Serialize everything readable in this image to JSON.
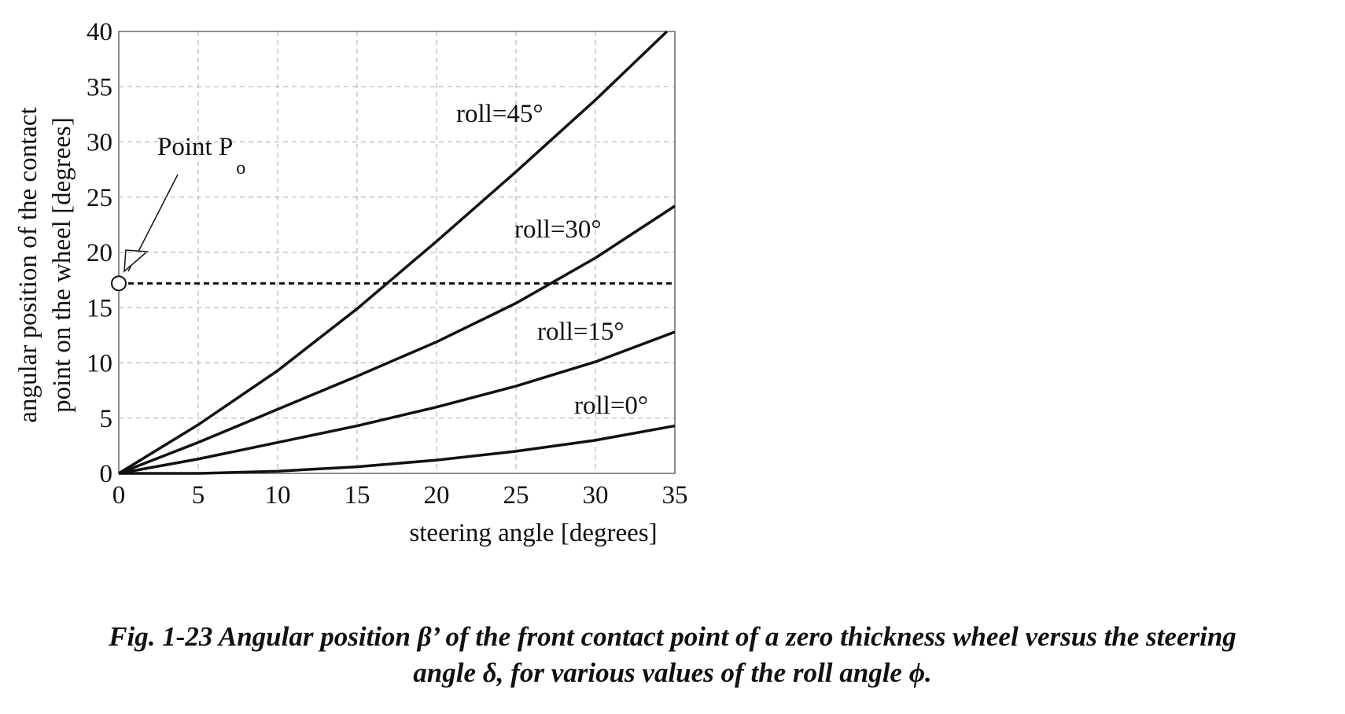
{
  "chart_data": {
    "type": "line",
    "xlabel": "steering angle [degrees]",
    "ylabel": [
      "angular position of the contact",
      "point on the wheel [degrees]"
    ],
    "x": [
      0,
      5,
      10,
      15,
      20,
      25,
      30,
      35
    ],
    "series": [
      {
        "name": "roll=45°",
        "color": "#111111",
        "x": [
          0,
          5,
          10,
          15,
          20,
          25,
          30,
          34.5
        ],
        "values": [
          0,
          4.4,
          9.3,
          14.9,
          21,
          27.3,
          33.8,
          40
        ]
      },
      {
        "name": "roll=30°",
        "color": "#111111",
        "values": [
          0,
          2.8,
          5.8,
          8.8,
          11.9,
          15.4,
          19.5,
          24.2
        ]
      },
      {
        "name": "roll=15°",
        "color": "#111111",
        "values": [
          0,
          1.3,
          2.8,
          4.3,
          6.0,
          7.9,
          10.1,
          12.8
        ]
      },
      {
        "name": "roll=0°",
        "color": "#111111",
        "values": [
          0,
          0,
          0.2,
          0.6,
          1.2,
          2.0,
          3.0,
          4.3
        ]
      }
    ],
    "reference_line": {
      "value": 17.2,
      "label": "Point P",
      "subscript": "o"
    },
    "xlim": [
      0,
      35
    ],
    "xticks": [
      0,
      5,
      10,
      15,
      20,
      25,
      30,
      35
    ],
    "ylim": [
      0,
      40
    ],
    "yticks": [
      0,
      5,
      10,
      15,
      20,
      25,
      30,
      35,
      40
    ],
    "grid": true,
    "caption": [
      "Fig. 1-23 Angular position β’ of the front contact point of a zero thickness wheel versus the steering",
      "angle δ, for various values of the roll angle ϕ."
    ]
  }
}
